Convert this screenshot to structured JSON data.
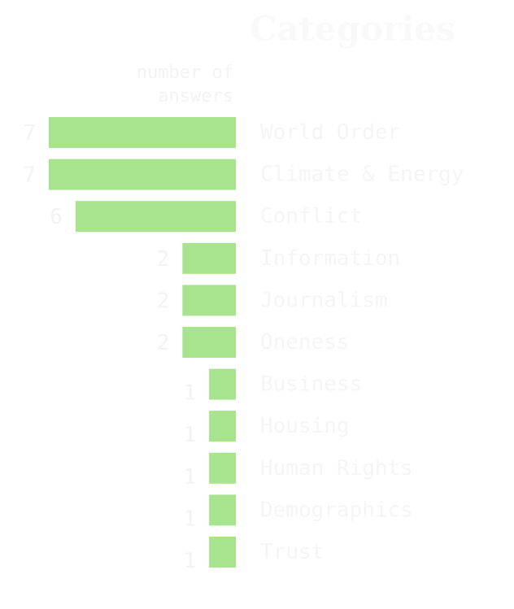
{
  "chart_data": {
    "type": "bar",
    "orientation": "horizontal",
    "title": "Categories",
    "xlabel": "number of answers",
    "xlabel_lines": [
      "number of",
      "answers"
    ],
    "categories": [
      "World Order",
      "Climate & Energy",
      "Conflict",
      "Information",
      "Journalism",
      "Oneness",
      "Business",
      "Housing",
      "Human Rights",
      "Demographics",
      "Trust"
    ],
    "values": [
      7,
      7,
      6,
      2,
      2,
      2,
      1,
      1,
      1,
      1,
      1
    ],
    "xlim": [
      0,
      7
    ],
    "bar_color": "#a8e48e",
    "grid": false,
    "legend": "none"
  }
}
